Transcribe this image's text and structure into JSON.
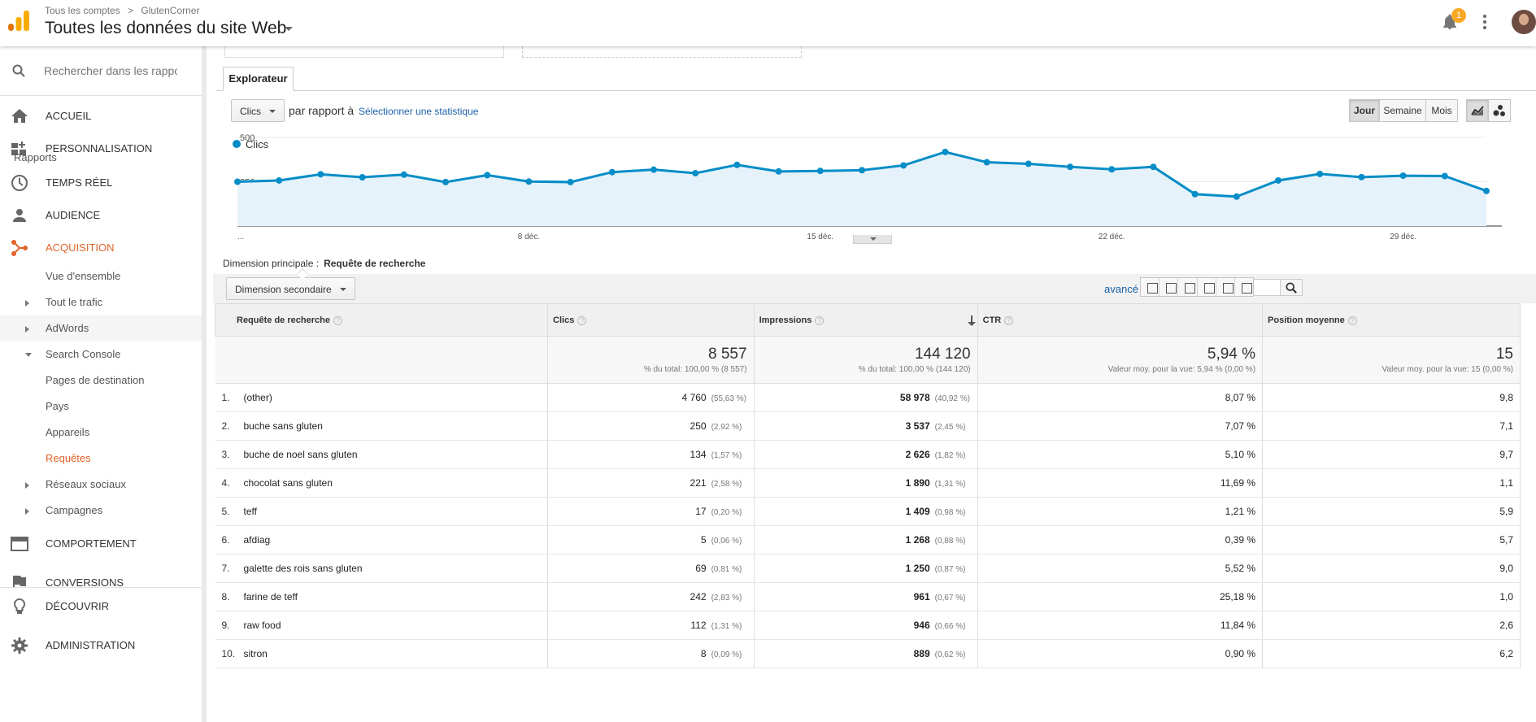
{
  "header": {
    "breadcrumb": [
      "Tous les comptes",
      ">",
      "GlutenCorner"
    ],
    "view_title": "Toutes les données du site Web",
    "notification_count": "1",
    "accent_color": "#f9a825",
    "brand_color": "#e37400"
  },
  "sidebar": {
    "search_placeholder": "Rechercher dans les rappor",
    "items": [
      {
        "label": "ACCUEIL",
        "icon": "home-icon"
      },
      {
        "label": "PERSONNALISATION",
        "icon": "dashboard-icon"
      }
    ],
    "reports_label": "Rapports",
    "reports": [
      {
        "label": "TEMPS RÉEL",
        "icon": "clock-icon"
      },
      {
        "label": "AUDIENCE",
        "icon": "person-icon"
      },
      {
        "label": "ACQUISITION",
        "icon": "acquisition-icon"
      }
    ],
    "acquisition_sub": {
      "overview": "Vue d'ensemble",
      "all_traffic": "Tout le trafic",
      "adwords": "AdWords",
      "search_console": "Search Console",
      "landing_pages": "Pages de destination",
      "countries": "Pays",
      "devices": "Appareils",
      "queries": "Requêtes",
      "social": "Réseaux sociaux",
      "campaigns": "Campagnes"
    },
    "bottom": [
      {
        "label": "COMPORTEMENT",
        "icon": "behavior-icon"
      },
      {
        "label": "CONVERSIONS",
        "icon": "flag-icon"
      },
      {
        "label": "DÉCOUVRIR",
        "icon": "bulb-icon"
      },
      {
        "label": "ADMINISTRATION",
        "icon": "gear-icon"
      }
    ]
  },
  "explorer": {
    "tab": "Explorateur",
    "metric": "Clics",
    "versus": "par rapport à",
    "select_metric": "Sélectionner une statistique",
    "periods": [
      "Jour",
      "Semaine",
      "Mois"
    ],
    "active_period": "Jour"
  },
  "chart_data": {
    "type": "line",
    "series": [
      {
        "name": "Clics",
        "color": "#058dc7",
        "values": [
          250,
          257,
          292,
          275,
          290,
          248,
          287,
          251,
          248,
          304,
          318,
          298,
          345,
          308,
          311,
          315,
          342,
          418,
          360,
          351,
          334,
          320,
          334,
          180,
          166,
          257,
          294,
          276,
          284,
          282,
          198
        ]
      }
    ],
    "ylim": [
      0,
      500
    ],
    "y_ticks": [
      "500",
      "250"
    ],
    "x_labels": [
      "...",
      "8 déc.",
      "15 déc.",
      "22 déc.",
      "29 déc."
    ],
    "grid": true
  },
  "table_controls": {
    "primary_dimension_label": "Dimension principale :",
    "primary_dimension_value": "Requête de recherche",
    "secondary_dimension": "Dimension secondaire",
    "advanced": "avancé"
  },
  "table": {
    "headers": [
      "Requête de recherche",
      "Clics",
      "Impressions",
      "CTR",
      "Position moyenne"
    ],
    "totals": {
      "clicks": "8 557",
      "clicks_sub": "% du total: 100,00 % (8 557)",
      "impr": "144 120",
      "impr_sub": "% du total: 100,00 % (144 120)",
      "ctr": "5,94 %",
      "ctr_sub": "Valeur moy. pour la vue: 5,94 % (0,00 %)",
      "pos": "15",
      "pos_sub": "Valeur moy. pour la vue: 15 (0,00 %)"
    },
    "rows": [
      {
        "rank": "1.",
        "query": "(other)",
        "clicks": "4 760",
        "clicks_pct": "(55,63 %)",
        "impr": "58 978",
        "impr_pct": "(40,92 %)",
        "ctr": "8,07 %",
        "pos": "9,8"
      },
      {
        "rank": "2.",
        "query": "buche sans gluten",
        "clicks": "250",
        "clicks_pct": "(2,92 %)",
        "impr": "3 537",
        "impr_pct": "(2,45 %)",
        "ctr": "7,07 %",
        "pos": "7,1"
      },
      {
        "rank": "3.",
        "query": "buche de noel sans gluten",
        "clicks": "134",
        "clicks_pct": "(1,57 %)",
        "impr": "2 626",
        "impr_pct": "(1,82 %)",
        "ctr": "5,10 %",
        "pos": "9,7"
      },
      {
        "rank": "4.",
        "query": "chocolat sans gluten",
        "clicks": "221",
        "clicks_pct": "(2,58 %)",
        "impr": "1 890",
        "impr_pct": "(1,31 %)",
        "ctr": "11,69 %",
        "pos": "1,1"
      },
      {
        "rank": "5.",
        "query": "teff",
        "clicks": "17",
        "clicks_pct": "(0,20 %)",
        "impr": "1 409",
        "impr_pct": "(0,98 %)",
        "ctr": "1,21 %",
        "pos": "5,9"
      },
      {
        "rank": "6.",
        "query": "afdiag",
        "clicks": "5",
        "clicks_pct": "(0,06 %)",
        "impr": "1 268",
        "impr_pct": "(0,88 %)",
        "ctr": "0,39 %",
        "pos": "5,7"
      },
      {
        "rank": "7.",
        "query": "galette des rois sans gluten",
        "clicks": "69",
        "clicks_pct": "(0,81 %)",
        "impr": "1 250",
        "impr_pct": "(0,87 %)",
        "ctr": "5,52 %",
        "pos": "9,0"
      },
      {
        "rank": "8.",
        "query": "farine de teff",
        "clicks": "242",
        "clicks_pct": "(2,83 %)",
        "impr": "961",
        "impr_pct": "(0,67 %)",
        "ctr": "25,18 %",
        "pos": "1,0"
      },
      {
        "rank": "9.",
        "query": "raw food",
        "clicks": "112",
        "clicks_pct": "(1,31 %)",
        "impr": "946",
        "impr_pct": "(0,66 %)",
        "ctr": "11,84 %",
        "pos": "2,6"
      },
      {
        "rank": "10.",
        "query": "sitron",
        "clicks": "8",
        "clicks_pct": "(0,09 %)",
        "impr": "889",
        "impr_pct": "(0,62 %)",
        "ctr": "0,90 %",
        "pos": "6,2"
      }
    ]
  }
}
